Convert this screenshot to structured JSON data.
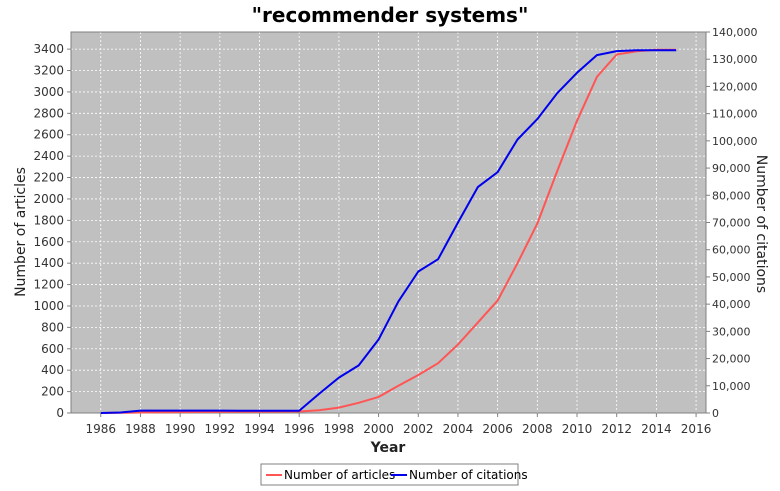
{
  "chart_data": {
    "type": "line",
    "title": "\"recommender systems\"",
    "xlabel": "Year",
    "ylabel": "Number of articles",
    "y2label": "Number of citations",
    "xlim": [
      1984.5,
      2016.5
    ],
    "ylim": [
      0,
      3560
    ],
    "y2lim": [
      0,
      140000
    ],
    "xticks": [
      1986,
      1988,
      1990,
      1992,
      1994,
      1996,
      1998,
      2000,
      2002,
      2004,
      2006,
      2008,
      2010,
      2012,
      2014,
      2016
    ],
    "yticks": [
      0,
      200,
      400,
      600,
      800,
      1000,
      1200,
      1400,
      1600,
      1800,
      2000,
      2200,
      2400,
      2600,
      2800,
      3000,
      3200,
      3400
    ],
    "y2ticks": [
      0,
      10000,
      20000,
      30000,
      40000,
      50000,
      60000,
      70000,
      80000,
      90000,
      100000,
      110000,
      120000,
      130000,
      140000
    ],
    "y2tick_labels": [
      "0",
      "10,000",
      "20,000",
      "30,000",
      "40,000",
      "50,000",
      "60,000",
      "70,000",
      "80,000",
      "90,000",
      "100,000",
      "110,000",
      "120,000",
      "130,000",
      "140,000"
    ],
    "grid": true,
    "background": "#c0c0c0",
    "legend_position": "bottom-center",
    "series": [
      {
        "name": "Number of articles",
        "axis": "left",
        "color": "#ff5555",
        "x": [
          1986,
          1987,
          1988,
          1989,
          1990,
          1991,
          1992,
          1993,
          1994,
          1995,
          1996,
          1997,
          1998,
          1999,
          2000,
          2001,
          2002,
          2003,
          2004,
          2005,
          2006,
          2007,
          2008,
          2009,
          2010,
          2011,
          2012,
          2013,
          2014,
          2015
        ],
        "values": [
          0,
          2,
          5,
          7,
          8,
          9,
          10,
          11,
          12,
          13,
          14,
          25,
          50,
          95,
          150,
          255,
          355,
          465,
          640,
          845,
          1050,
          1400,
          1770,
          2260,
          2730,
          3140,
          3350,
          3380,
          3395,
          3395
        ]
      },
      {
        "name": "Number of citations",
        "axis": "right",
        "color": "#0000ee",
        "x": [
          1986,
          1987,
          1988,
          1989,
          1990,
          1991,
          1992,
          1993,
          1994,
          1995,
          1996,
          1997,
          1998,
          1999,
          2000,
          2001,
          2002,
          2003,
          2004,
          2005,
          2006,
          2007,
          2008,
          2009,
          2010,
          2011,
          2012,
          2013,
          2014,
          2015
        ],
        "values": [
          0,
          200,
          900,
          900,
          900,
          900,
          900,
          850,
          850,
          850,
          850,
          7000,
          13000,
          17500,
          27000,
          41000,
          52000,
          56500,
          70000,
          83000,
          88500,
          100500,
          108000,
          117500,
          125000,
          131500,
          133000,
          133300,
          133300,
          133300
        ]
      }
    ]
  }
}
